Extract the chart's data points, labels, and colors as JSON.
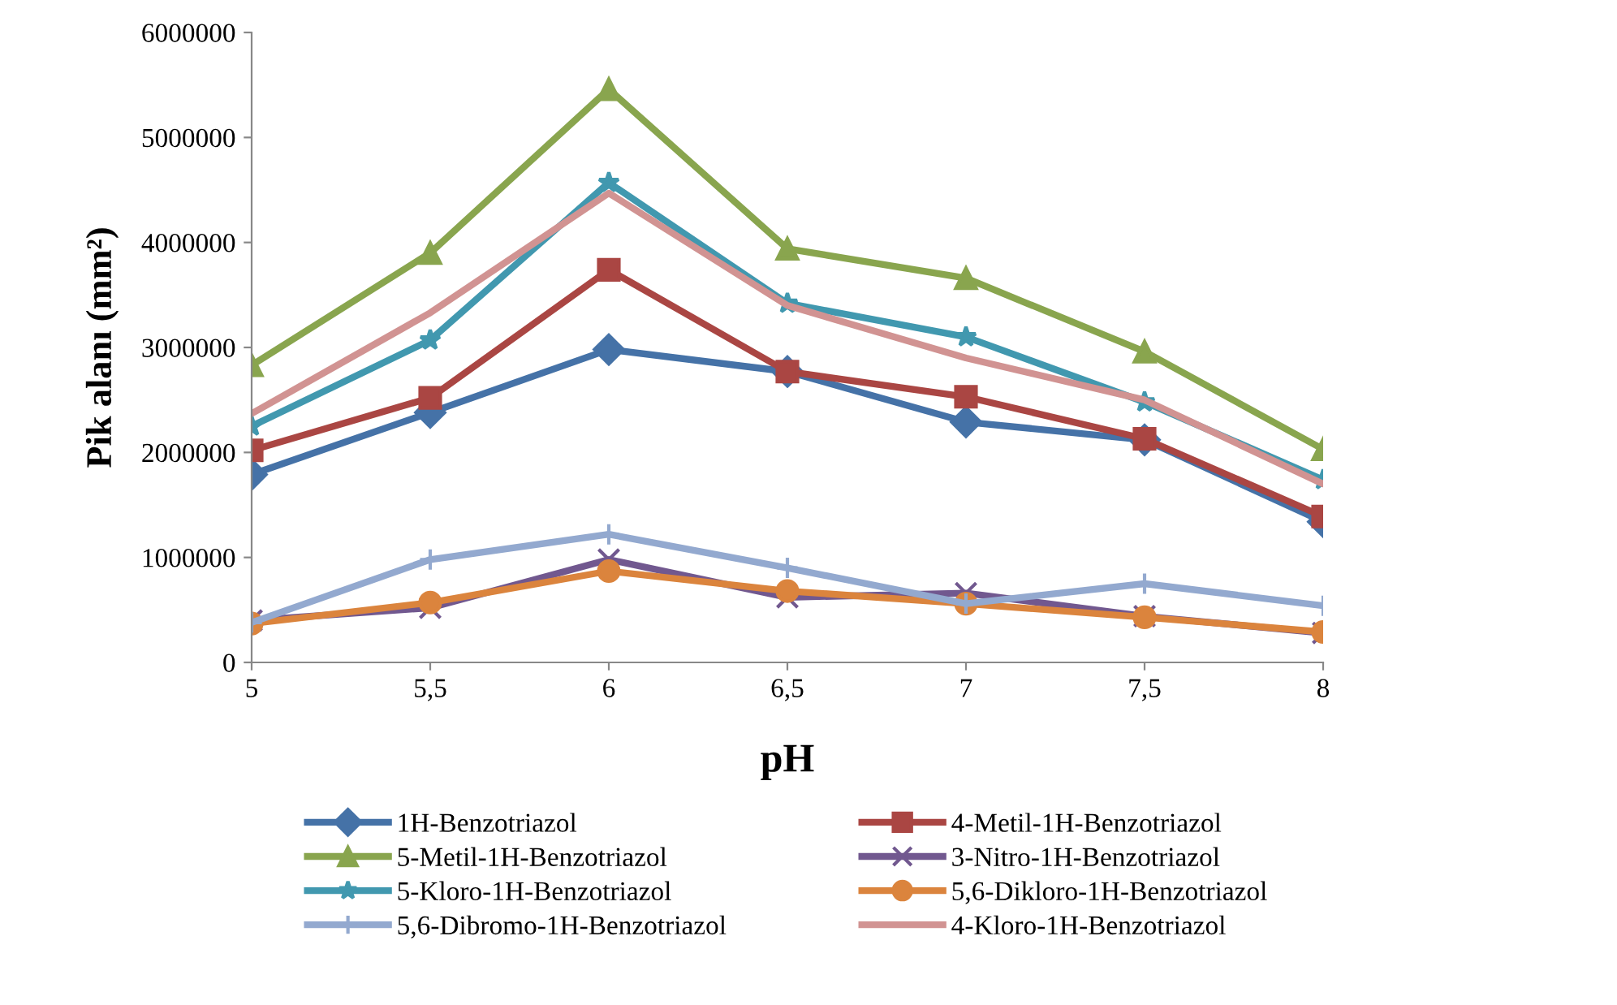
{
  "chart_data": {
    "type": "line",
    "xlabel": "pH",
    "ylabel": "Pik alanı (mm²)",
    "x": [
      5,
      5.5,
      6,
      6.5,
      7,
      7.5,
      8
    ],
    "xlim": [
      5,
      8
    ],
    "xticks": [
      5,
      {
        "value": 5.5,
        "label": "5,5"
      },
      6,
      {
        "value": 6.5,
        "label": "6,5"
      },
      7,
      {
        "value": 7.5,
        "label": "7,5"
      },
      8
    ],
    "ylim": [
      0,
      6000000
    ],
    "yticks": [
      0,
      1000000,
      2000000,
      3000000,
      4000000,
      5000000,
      6000000
    ],
    "grid": false,
    "legend": "bottom",
    "line_style": "solid",
    "series": [
      {
        "name": "1H-Benzotriazol",
        "color": "#4572a7",
        "marker": "diamond",
        "values": [
          1790000,
          2380000,
          2980000,
          2770000,
          2290000,
          2120000,
          1340000
        ]
      },
      {
        "name": "4-Metil-1H-Benzotriazol",
        "color": "#aa4643",
        "marker": "square",
        "values": [
          2020000,
          2520000,
          3740000,
          2770000,
          2530000,
          2130000,
          1390000
        ]
      },
      {
        "name": "5-Metil-1H-Benzotriazol",
        "color": "#89a54e",
        "marker": "triangle",
        "values": [
          2830000,
          3900000,
          5460000,
          3940000,
          3660000,
          2960000,
          2030000
        ]
      },
      {
        "name": "3-Nitro-1H-Benzotriazol",
        "color": "#71588f",
        "marker": "cross",
        "values": [
          400000,
          520000,
          980000,
          620000,
          660000,
          440000,
          280000
        ]
      },
      {
        "name": "5-Kloro-1H-Benzotriazol",
        "color": "#4198af",
        "marker": "star",
        "values": [
          2250000,
          3070000,
          4570000,
          3420000,
          3100000,
          2480000,
          1740000
        ]
      },
      {
        "name": "5,6-Dikloro-1H-Benzotriazol",
        "color": "#db843d",
        "marker": "circle",
        "values": [
          370000,
          570000,
          870000,
          680000,
          560000,
          430000,
          290000
        ]
      },
      {
        "name": "5,6-Dibromo-1H-Benzotriazol",
        "color": "#93a9cf",
        "marker": "plus",
        "values": [
          380000,
          980000,
          1220000,
          900000,
          560000,
          750000,
          540000
        ]
      },
      {
        "name": "4-Kloro-1H-Benzotriazol",
        "color": "#d19392",
        "marker": "none",
        "values": [
          2370000,
          3330000,
          4470000,
          3400000,
          2900000,
          2500000,
          1700000
        ]
      }
    ]
  }
}
